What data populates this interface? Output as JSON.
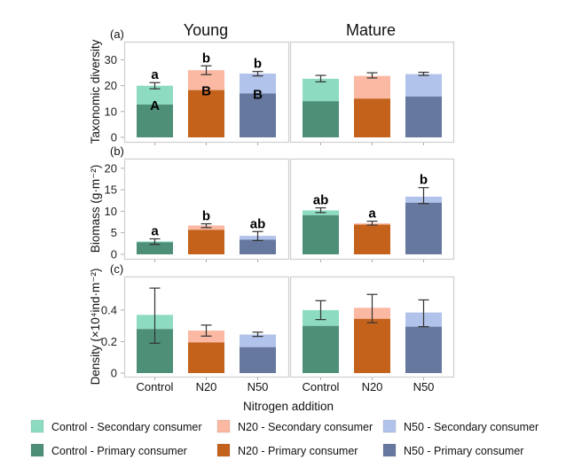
{
  "chart_data": {
    "type": "bar",
    "subtype": "stacked-bar-with-error-bars",
    "column_titles": [
      "Young",
      "Mature"
    ],
    "categories": [
      "Control",
      "N20",
      "N50"
    ],
    "xlabel": "Nitrogen addition",
    "colors": {
      "Control": {
        "secondary": "#8ddcc2",
        "primary": "#4e8f78"
      },
      "N20": {
        "secondary": "#fbb8a2",
        "primary": "#c4621c"
      },
      "N50": {
        "secondary": "#b1c3ea",
        "primary": "#66789e"
      }
    },
    "panels": [
      {
        "label": "(a)",
        "ylabel": "Taxonomic diversity",
        "ylim": [
          0,
          35
        ],
        "yticks": [
          "0",
          "10",
          "20",
          "30"
        ],
        "ytick_values": [
          0,
          10,
          20,
          30
        ],
        "groups": {
          "Young": [
            {
              "category": "Control",
              "primary": 12.7,
              "total": 20.0,
              "err": [
                18.8,
                21.2
              ],
              "sig_upper": "a",
              "sig_inner": "A"
            },
            {
              "category": "N20",
              "primary": 18.3,
              "total": 26.0,
              "err": [
                24.3,
                27.7
              ],
              "sig_upper": "b",
              "sig_inner": "B"
            },
            {
              "category": "N50",
              "primary": 17.0,
              "total": 24.7,
              "err": [
                23.8,
                25.5
              ],
              "sig_upper": "b",
              "sig_inner": "B"
            }
          ],
          "Mature": [
            {
              "category": "Control",
              "primary": 14.0,
              "total": 22.7,
              "err": [
                21.5,
                24.0
              ],
              "sig_upper": "",
              "sig_inner": ""
            },
            {
              "category": "N20",
              "primary": 15.0,
              "total": 23.8,
              "err": [
                23.0,
                25.0
              ],
              "sig_upper": "",
              "sig_inner": ""
            },
            {
              "category": "N50",
              "primary": 15.8,
              "total": 24.5,
              "err": [
                24.0,
                25.2
              ],
              "sig_upper": "",
              "sig_inner": ""
            }
          ]
        }
      },
      {
        "label": "(b)",
        "ylabel": "Biomass (g·m⁻²)",
        "ylim": [
          0,
          21
        ],
        "yticks": [
          "0",
          "5",
          "10",
          "15",
          "20"
        ],
        "ytick_values": [
          0,
          5,
          10,
          15,
          20
        ],
        "groups": {
          "Young": [
            {
              "category": "Control",
              "primary": 2.8,
              "total": 3.0,
              "err": [
                2.3,
                3.6
              ],
              "sig_upper": "a",
              "sig_inner": ""
            },
            {
              "category": "N20",
              "primary": 5.7,
              "total": 6.7,
              "err": [
                6.2,
                7.1
              ],
              "sig_upper": "b",
              "sig_inner": ""
            },
            {
              "category": "N50",
              "primary": 3.4,
              "total": 4.3,
              "err": [
                3.2,
                5.3
              ],
              "sig_upper": "ab",
              "sig_inner": ""
            }
          ],
          "Mature": [
            {
              "category": "Control",
              "primary": 9.1,
              "total": 10.2,
              "err": [
                9.7,
                10.8
              ],
              "sig_upper": "ab",
              "sig_inner": ""
            },
            {
              "category": "N20",
              "primary": 6.9,
              "total": 7.2,
              "err": [
                6.8,
                7.7
              ],
              "sig_upper": "a",
              "sig_inner": ""
            },
            {
              "category": "N50",
              "primary": 12.0,
              "total": 13.4,
              "err": [
                11.8,
                15.5
              ],
              "sig_upper": "b",
              "sig_inner": ""
            }
          ]
        }
      },
      {
        "label": "(c)",
        "ylabel": "Density (×10⁴ind·m⁻²)",
        "ylim": [
          0,
          0.58
        ],
        "yticks": [
          "0",
          "0.2",
          "0.4"
        ],
        "ytick_values": [
          0,
          0.2,
          0.4
        ],
        "groups": {
          "Young": [
            {
              "category": "Control",
              "primary": 0.28,
              "total": 0.37,
              "err": [
                0.19,
                0.54
              ],
              "sig_upper": "",
              "sig_inner": ""
            },
            {
              "category": "N20",
              "primary": 0.195,
              "total": 0.27,
              "err": [
                0.235,
                0.305
              ],
              "sig_upper": "",
              "sig_inner": ""
            },
            {
              "category": "N50",
              "primary": 0.165,
              "total": 0.245,
              "err": [
                0.233,
                0.26
              ],
              "sig_upper": "",
              "sig_inner": ""
            }
          ],
          "Mature": [
            {
              "category": "Control",
              "primary": 0.3,
              "total": 0.4,
              "err": [
                0.34,
                0.46
              ],
              "sig_upper": "",
              "sig_inner": ""
            },
            {
              "category": "N20",
              "primary": 0.345,
              "total": 0.415,
              "err": [
                0.32,
                0.5
              ],
              "sig_upper": "",
              "sig_inner": ""
            },
            {
              "category": "N50",
              "primary": 0.295,
              "total": 0.385,
              "err": [
                0.295,
                0.465
              ],
              "sig_upper": "",
              "sig_inner": ""
            }
          ]
        }
      }
    ],
    "legend": {
      "placement": "bottom",
      "entries": [
        {
          "label": "Control - Secondary consumer",
          "color": "#8ddcc2"
        },
        {
          "label": "N20 - Secondary consumer",
          "color": "#fbb8a2"
        },
        {
          "label": "N50 - Secondary consumer",
          "color": "#b1c3ea"
        },
        {
          "label": "Control - Primary consumer",
          "color": "#4e8f78"
        },
        {
          "label": "N20 - Primary consumer",
          "color": "#c4621c"
        },
        {
          "label": "N50 - Primary consumer",
          "color": "#66789e"
        }
      ]
    }
  }
}
